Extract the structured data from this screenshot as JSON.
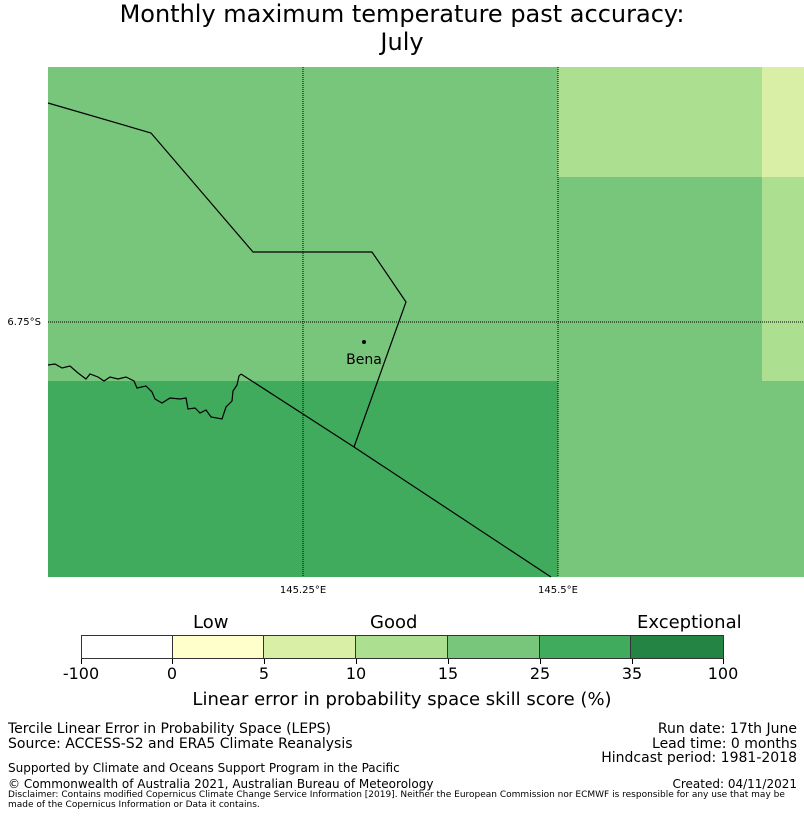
{
  "title": {
    "line1": "Monthly maximum temperature past accuracy:",
    "line2": "July"
  },
  "map": {
    "lat_labels": [
      "6.75°S"
    ],
    "lon_labels": [
      "145.25°E",
      "145.5°E"
    ],
    "place_label": "Bena",
    "colors": {
      "cat_5_10": "#d9efa5",
      "cat_10_15": "#addf91",
      "cat_15_25": "#78c67c",
      "cat_25_35": "#41ab5d",
      "gridline": "#000000",
      "border": "#000000"
    }
  },
  "legend": {
    "headings": [
      "Low",
      "Good",
      "Exceptional"
    ],
    "tick_labels": [
      "-100",
      "0",
      "5",
      "10",
      "15",
      "25",
      "35",
      "100"
    ],
    "segments": [
      {
        "range": "-100 to 0",
        "color": "#ffffff"
      },
      {
        "range": "0 to 5",
        "color": "#ffffcc"
      },
      {
        "range": "5 to 10",
        "color": "#d9efa5"
      },
      {
        "range": "10 to 15",
        "color": "#addf91"
      },
      {
        "range": "15 to 25",
        "color": "#78c67c"
      },
      {
        "range": "25 to 35",
        "color": "#41ab5d"
      },
      {
        "range": "35 to 100",
        "color": "#238443"
      }
    ],
    "axis_label": "Linear error in probability space skill score (%)"
  },
  "info": {
    "line1": "Tercile Linear Error in Probability Space (LEPS)",
    "line2": "Source: ACCESS-S2 and ERA5 Climate Reanalysis",
    "run_date": "Run date: 17th June",
    "lead_time": "Lead time: 0 months",
    "hindcast": "Hindcast period: 1981-2018",
    "supported": "Supported by Climate and Oceans Support Program in the Pacific",
    "copyright": "© Commonwealth of Australia 2021, Australian Bureau of Meteorology",
    "created": "Created: 04/11/2021",
    "disclaimer": "Disclaimer: Contains modified Copernicus Climate Change Service Information [2019]. Neither the European Commission nor ECMWF is responsible for any use that may be made of the Copernicus Information or Data it contains."
  }
}
